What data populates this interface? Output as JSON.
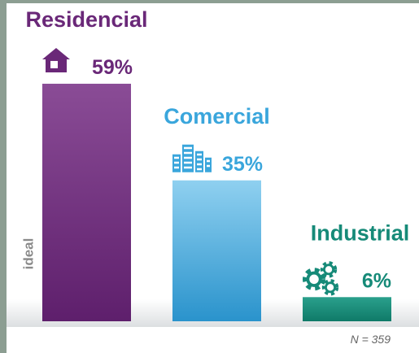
{
  "chart_data": {
    "type": "bar",
    "categories": [
      "Residencial",
      "Comercial",
      "Industrial"
    ],
    "values": [
      59,
      35,
      6
    ],
    "value_labels": [
      "59%",
      "35%",
      "6%"
    ],
    "colors": [
      "#6a2878",
      "#3aa6dc",
      "#168a78"
    ],
    "note": "N = 359",
    "logo": "ideal"
  }
}
